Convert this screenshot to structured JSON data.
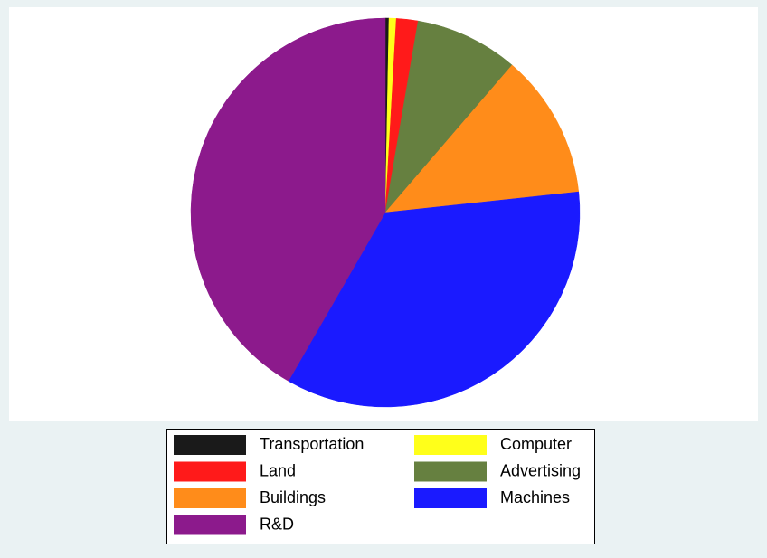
{
  "chart_data": {
    "type": "pie",
    "categories": [
      "Transportation",
      "Computer",
      "Land",
      "Advertising",
      "Buildings",
      "Machines",
      "R&D"
    ],
    "values": [
      0.3,
      0.6,
      1.8,
      8.6,
      12.0,
      35.0,
      41.7
    ],
    "colors": [
      "#1a1a1a",
      "#ffff1a",
      "#ff1a1a",
      "#668040",
      "#ff8c1a",
      "#1a1aff",
      "#8c1a8c"
    ],
    "legend_columns": 2
  }
}
